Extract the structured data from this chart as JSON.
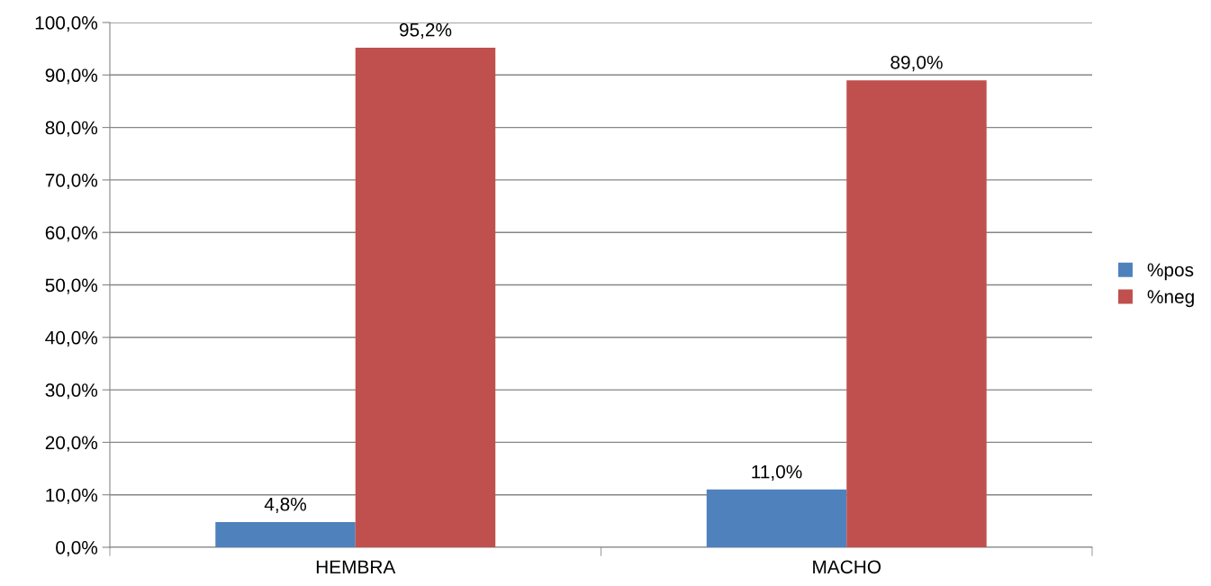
{
  "chart_data": {
    "type": "bar",
    "categories": [
      "HEMBRA",
      "MACHO"
    ],
    "series": [
      {
        "name": "%pos",
        "color": "#4f81bd",
        "values": [
          4.8,
          11.0
        ],
        "value_labels": [
          "4,8%",
          "11,0%"
        ]
      },
      {
        "name": "%neg",
        "color": "#c0504d",
        "values": [
          95.2,
          89.0
        ],
        "value_labels": [
          "95,2%",
          "89,0%"
        ]
      }
    ],
    "ylim": [
      0,
      100
    ],
    "yticks": [
      {
        "value": 0,
        "label": "0,0%"
      },
      {
        "value": 10,
        "label": "10,0%"
      },
      {
        "value": 20,
        "label": "20,0%"
      },
      {
        "value": 30,
        "label": "30,0%"
      },
      {
        "value": 40,
        "label": "40,0%"
      },
      {
        "value": 50,
        "label": "50,0%"
      },
      {
        "value": 60,
        "label": "60,0%"
      },
      {
        "value": 70,
        "label": "70,0%"
      },
      {
        "value": 80,
        "label": "80,0%"
      },
      {
        "value": 90,
        "label": "90,0%"
      },
      {
        "value": 100,
        "label": "100,0%"
      }
    ],
    "grid": "y",
    "legend": "right"
  }
}
